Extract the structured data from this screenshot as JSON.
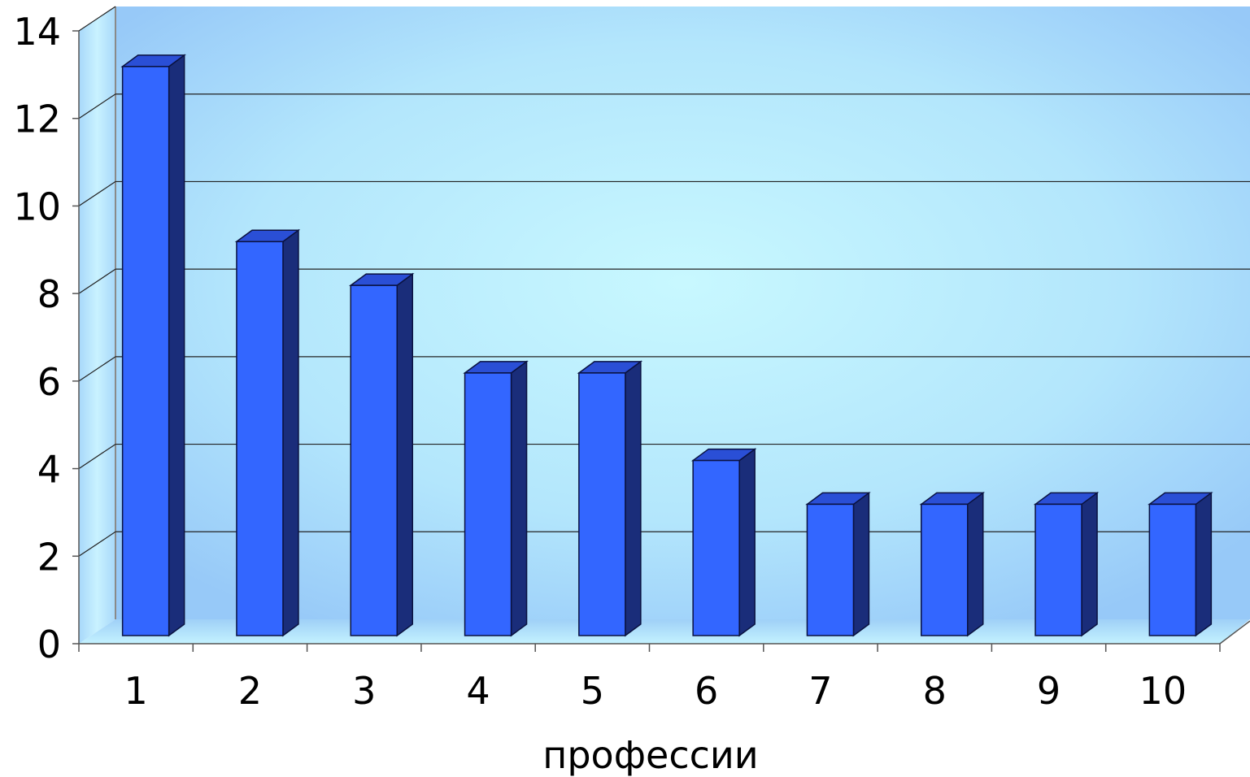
{
  "chart_data": {
    "type": "bar",
    "style": "3d-column",
    "categories": [
      "1",
      "2",
      "3",
      "4",
      "5",
      "6",
      "7",
      "8",
      "9",
      "10"
    ],
    "values": [
      13,
      9,
      8,
      6,
      6,
      4,
      3,
      3,
      3,
      3
    ],
    "xlabel": "профессии",
    "ylabel": "",
    "ylim": [
      0,
      14
    ],
    "yticks": [
      "0",
      "2",
      "4",
      "6",
      "8",
      "10",
      "12",
      "14"
    ],
    "grid": true,
    "legend": "none",
    "colors": {
      "bar_front": "#3366ff",
      "bar_side": "#1a2d7a",
      "bar_top": "#2a4fd6",
      "wall_center": "#c8f6ff",
      "wall_edge": "#97c9f8"
    }
  }
}
